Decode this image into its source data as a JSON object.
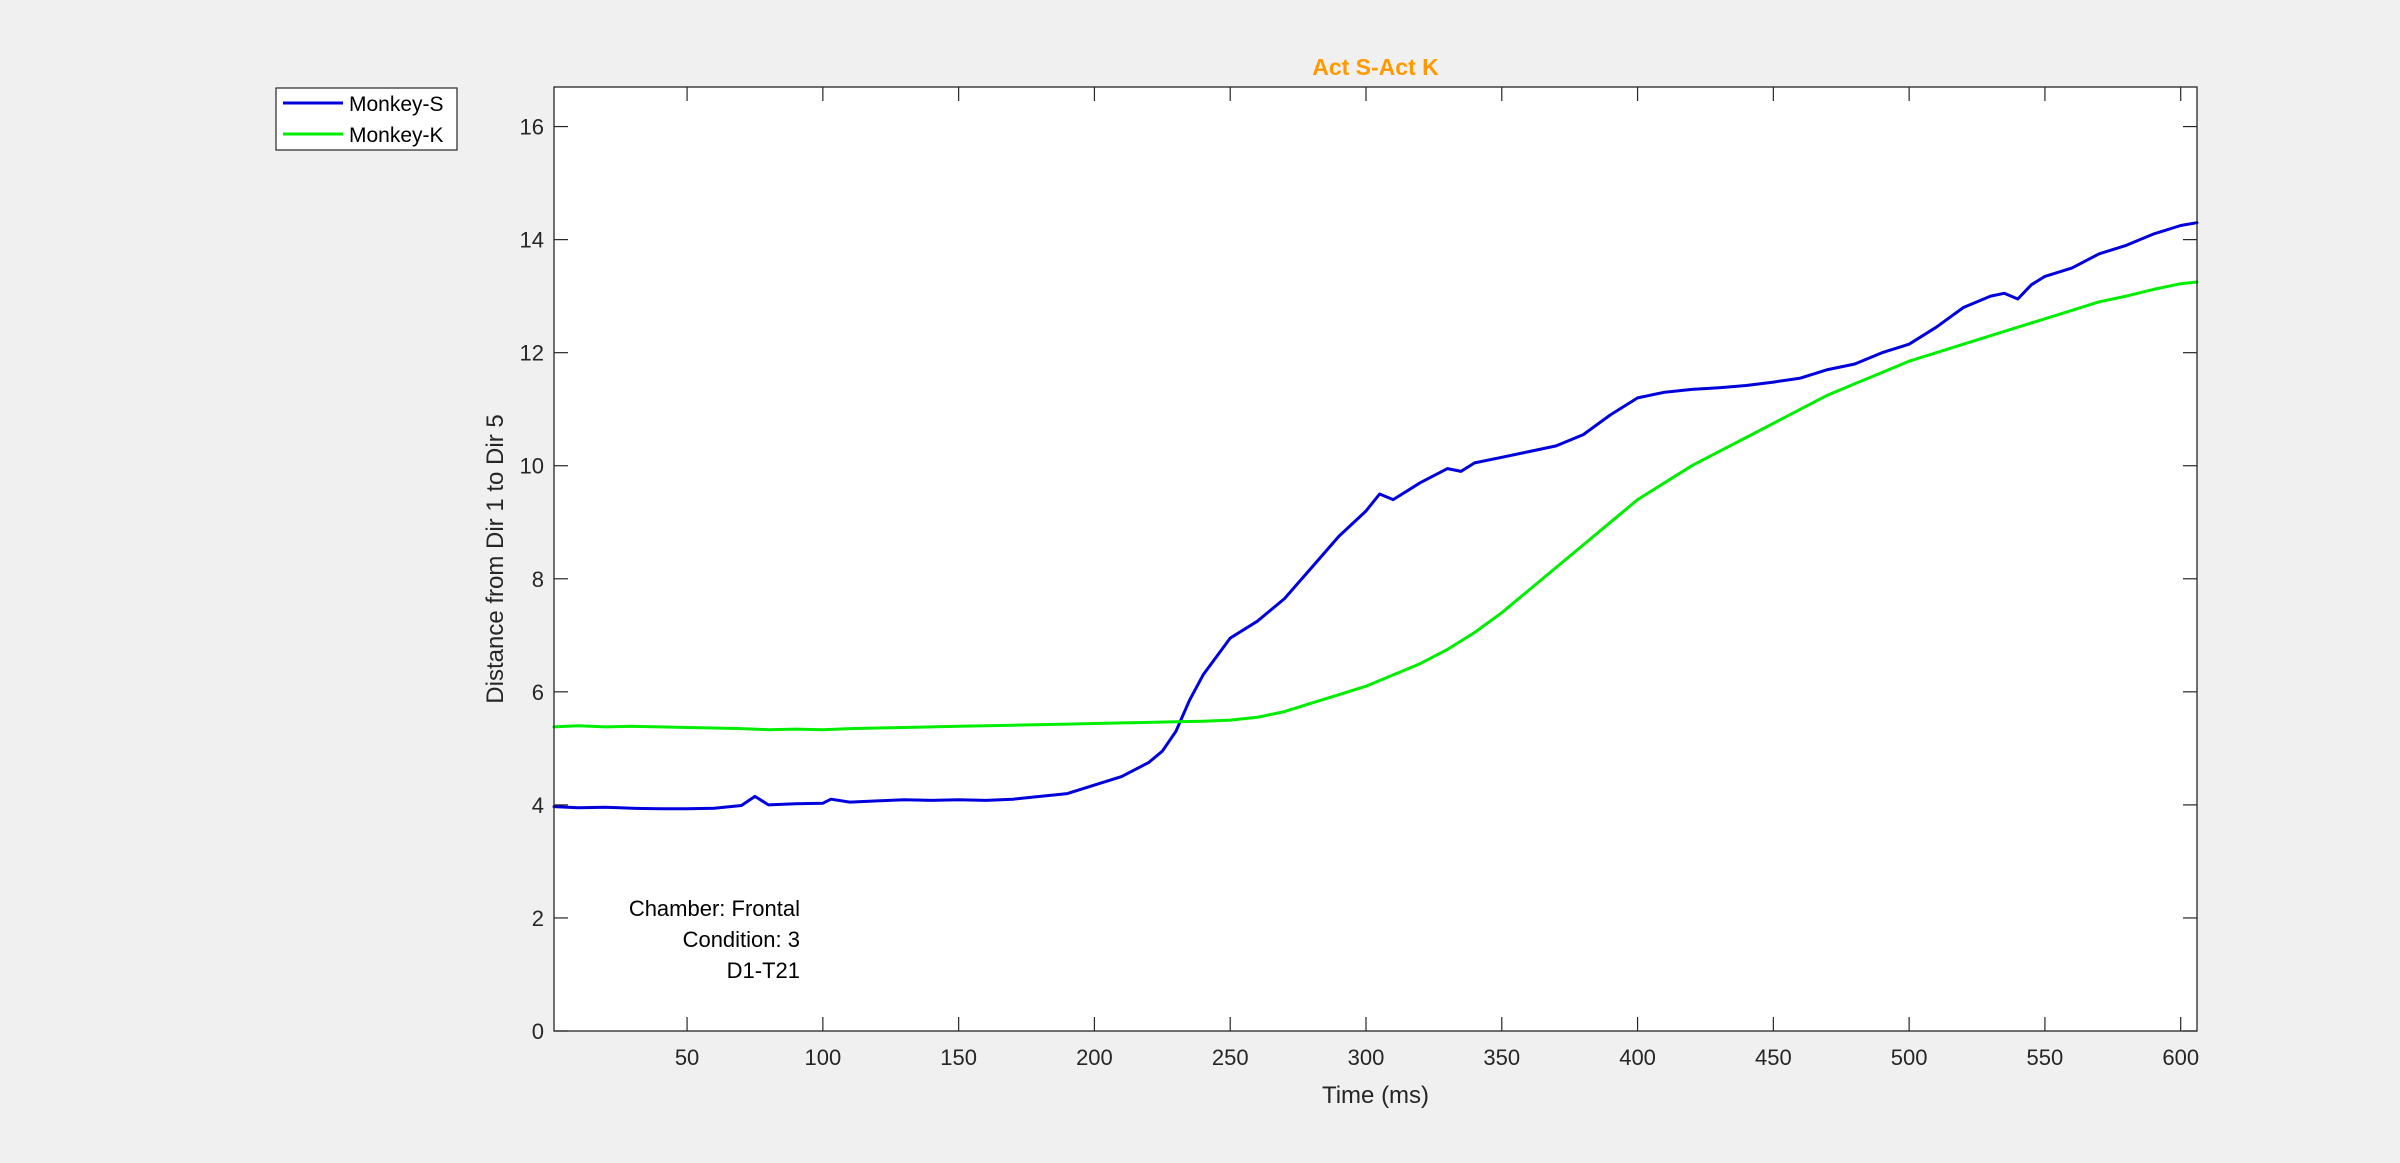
{
  "chart_data": {
    "type": "line",
    "title": "Act S-Act K",
    "title_color": "#ff9900",
    "xlabel": "Time (ms)",
    "ylabel": "Distance from Dir 1 to Dir 5",
    "xlim": [
      1,
      606
    ],
    "ylim": [
      0,
      16.7
    ],
    "xticks": [
      50,
      100,
      150,
      200,
      250,
      300,
      350,
      400,
      450,
      500,
      550,
      600
    ],
    "yticks": [
      0,
      2,
      4,
      6,
      8,
      10,
      12,
      14,
      16
    ],
    "grid": false,
    "legend_position": "outside-top-left",
    "series": [
      {
        "name": "Monkey-S",
        "color": "#0000dd",
        "x": [
          1,
          10,
          20,
          30,
          40,
          50,
          60,
          70,
          75,
          80,
          90,
          100,
          103,
          110,
          120,
          130,
          140,
          150,
          160,
          170,
          180,
          190,
          200,
          210,
          220,
          225,
          230,
          235,
          240,
          250,
          260,
          270,
          280,
          290,
          300,
          305,
          310,
          320,
          330,
          335,
          340,
          350,
          360,
          370,
          380,
          390,
          400,
          410,
          420,
          430,
          440,
          450,
          460,
          470,
          480,
          490,
          500,
          510,
          520,
          530,
          535,
          540,
          545,
          550,
          560,
          570,
          580,
          590,
          600,
          606
        ],
        "y": [
          3.97,
          3.95,
          3.96,
          3.94,
          3.93,
          3.93,
          3.94,
          3.99,
          4.15,
          4.0,
          4.02,
          4.03,
          4.1,
          4.05,
          4.07,
          4.09,
          4.08,
          4.09,
          4.08,
          4.1,
          4.15,
          4.2,
          4.35,
          4.5,
          4.75,
          4.95,
          5.3,
          5.85,
          6.3,
          6.95,
          7.25,
          7.65,
          8.2,
          8.75,
          9.2,
          9.5,
          9.4,
          9.7,
          9.95,
          9.9,
          10.05,
          10.15,
          10.25,
          10.35,
          10.55,
          10.9,
          11.2,
          11.3,
          11.35,
          11.38,
          11.42,
          11.48,
          11.55,
          11.7,
          11.8,
          12.0,
          12.15,
          12.45,
          12.8,
          13.0,
          13.05,
          12.95,
          13.2,
          13.35,
          13.5,
          13.75,
          13.9,
          14.1,
          14.25,
          14.3
        ]
      },
      {
        "name": "Monkey-K",
        "color": "#00ee00",
        "x": [
          1,
          10,
          20,
          30,
          40,
          50,
          60,
          70,
          80,
          90,
          100,
          110,
          120,
          130,
          140,
          150,
          160,
          170,
          180,
          190,
          200,
          210,
          220,
          230,
          240,
          250,
          260,
          270,
          280,
          290,
          300,
          310,
          320,
          330,
          340,
          350,
          360,
          370,
          380,
          390,
          400,
          410,
          420,
          430,
          440,
          450,
          460,
          470,
          480,
          490,
          500,
          510,
          520,
          530,
          540,
          550,
          560,
          570,
          580,
          590,
          600,
          606
        ],
        "y": [
          5.38,
          5.4,
          5.38,
          5.39,
          5.38,
          5.37,
          5.36,
          5.35,
          5.33,
          5.34,
          5.33,
          5.35,
          5.36,
          5.37,
          5.38,
          5.39,
          5.4,
          5.41,
          5.42,
          5.43,
          5.44,
          5.45,
          5.46,
          5.47,
          5.48,
          5.5,
          5.55,
          5.65,
          5.8,
          5.95,
          6.1,
          6.3,
          6.5,
          6.75,
          7.05,
          7.4,
          7.8,
          8.2,
          8.6,
          9.0,
          9.4,
          9.7,
          10.0,
          10.25,
          10.5,
          10.75,
          11.0,
          11.25,
          11.45,
          11.65,
          11.85,
          12.0,
          12.15,
          12.3,
          12.45,
          12.6,
          12.75,
          12.9,
          13.0,
          13.12,
          13.22,
          13.25
        ]
      }
    ],
    "annotations": [
      "Chamber: Frontal",
      "Condition: 3",
      "D1-T21"
    ]
  }
}
